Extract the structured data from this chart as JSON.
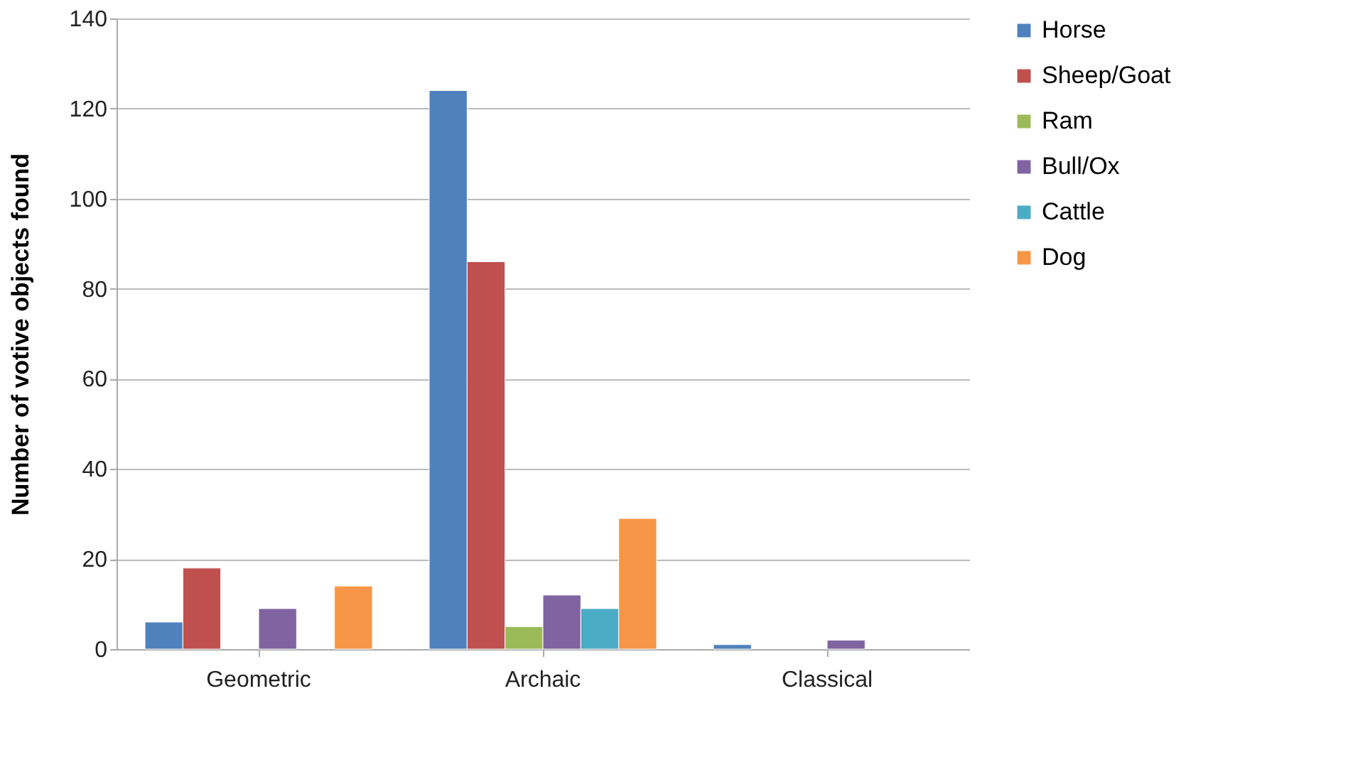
{
  "chart_data": {
    "type": "bar",
    "ylabel": "Number of votive objects found",
    "categories": [
      "Geometric",
      "Archaic",
      "Classical"
    ],
    "series": [
      {
        "name": "Horse",
        "color": "#4f81bd",
        "values": [
          6,
          124,
          1
        ]
      },
      {
        "name": "Sheep/Goat",
        "color": "#c0504d",
        "values": [
          18,
          86,
          null
        ]
      },
      {
        "name": "Ram",
        "color": "#9bbb59",
        "values": [
          null,
          5,
          null
        ]
      },
      {
        "name": "Bull/Ox",
        "color": "#8064a2",
        "values": [
          9,
          12,
          2
        ]
      },
      {
        "name": "Cattle",
        "color": "#4bacc6",
        "values": [
          null,
          9,
          null
        ]
      },
      {
        "name": "Dog",
        "color": "#f79646",
        "values": [
          14,
          29,
          null
        ]
      }
    ],
    "ylim": [
      0,
      140
    ],
    "yticks": [
      0,
      20,
      40,
      60,
      80,
      100,
      120,
      140
    ],
    "grid": "y",
    "legend": "right"
  }
}
